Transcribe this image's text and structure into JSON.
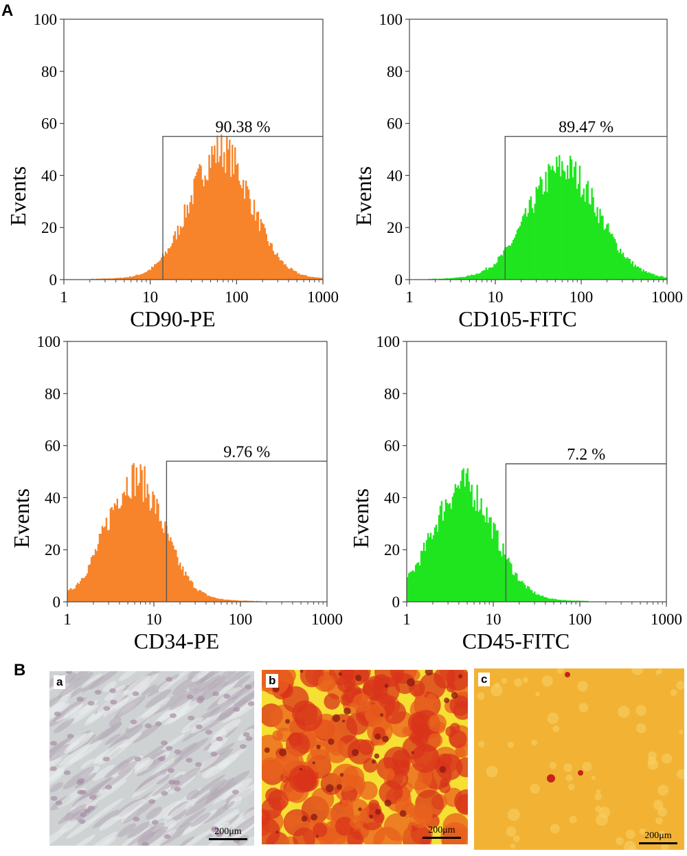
{
  "figure": {
    "panel_A_label": "A",
    "panel_B_label": "B"
  },
  "chart_data": [
    {
      "type": "histogram",
      "xscale": "log",
      "xlim": [
        1,
        1000
      ],
      "ylim": [
        0,
        100
      ],
      "xticks": [
        "1",
        "10",
        "100",
        "1000"
      ],
      "yticks": [
        "0",
        "20",
        "40",
        "60",
        "80",
        "100"
      ],
      "xlabel": "CD90-PE",
      "ylabel": "Events",
      "color": "#f7842a",
      "gate": {
        "x_start": 14,
        "x_end": 1000,
        "y": 55,
        "label": "90.38 %"
      },
      "distribution": {
        "peak_x": 65,
        "peak_y": 52,
        "spread": 0.35
      }
    },
    {
      "type": "histogram",
      "xscale": "log",
      "xlim": [
        1,
        1000
      ],
      "ylim": [
        0,
        100
      ],
      "xticks": [
        "1",
        "10",
        "100",
        "1000"
      ],
      "yticks": [
        "0",
        "20",
        "40",
        "60",
        "80",
        "100"
      ],
      "xlabel": "CD105-FITC",
      "ylabel": "Events",
      "color": "#1fe51f",
      "gate": {
        "x_start": 13,
        "x_end": 1000,
        "y": 55,
        "label": "89.47 %"
      },
      "distribution": {
        "peak_x": 62,
        "peak_y": 45,
        "spread": 0.4
      }
    },
    {
      "type": "histogram",
      "xscale": "log",
      "xlim": [
        1,
        1000
      ],
      "ylim": [
        0,
        100
      ],
      "xticks": [
        "1",
        "10",
        "100",
        "1000"
      ],
      "yticks": [
        "0",
        "20",
        "40",
        "60",
        "80",
        "100"
      ],
      "xlabel": "CD34-PE",
      "ylabel": "Events",
      "color": "#f7842a",
      "gate": {
        "x_start": 14,
        "x_end": 1000,
        "y": 54,
        "label": "9.76 %"
      },
      "distribution": {
        "peak_x": 6,
        "peak_y": 50,
        "spread": 0.33
      }
    },
    {
      "type": "histogram",
      "xscale": "log",
      "xlim": [
        1,
        1000
      ],
      "ylim": [
        0,
        100
      ],
      "xticks": [
        "1",
        "10",
        "100",
        "1000"
      ],
      "yticks": [
        "0",
        "20",
        "40",
        "60",
        "80",
        "100"
      ],
      "xlabel": "CD45-FITC",
      "ylabel": "Events",
      "color": "#1fe51f",
      "gate": {
        "x_start": 14,
        "x_end": 1000,
        "y": 53,
        "label": "7.2 %"
      },
      "distribution": {
        "peak_x": 4.5,
        "peak_y": 47,
        "spread": 0.35
      }
    }
  ],
  "micrographs": [
    {
      "label": "a",
      "scale_bar": "200μm",
      "base_color": "#cfd2d3"
    },
    {
      "label": "b",
      "scale_bar": "200μm",
      "base_color": "#f5e033"
    },
    {
      "label": "c",
      "scale_bar": "200μm",
      "base_color": "#f2b335"
    }
  ]
}
